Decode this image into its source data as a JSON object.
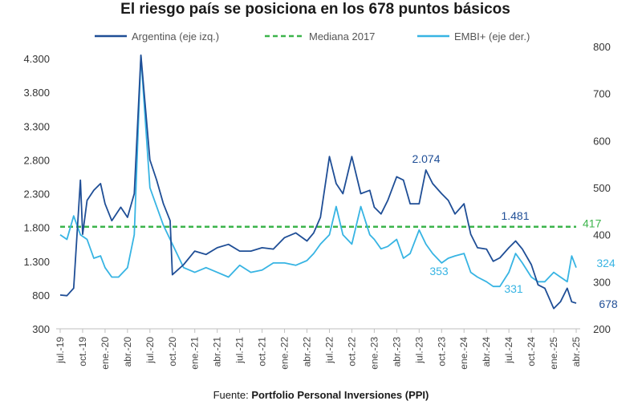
{
  "chart_data": {
    "type": "line",
    "title": "El riesgo país se posiciona en los 678 puntos básicos",
    "source_prefix": "Fuente: ",
    "source_name": "Portfolio Personal Inversiones (PPI)",
    "x_ticks": [
      "jul.-19",
      "oct.-19",
      "ene.-20",
      "abr.-20",
      "jul.-20",
      "oct.-20",
      "ene.-21",
      "abr.-21",
      "jul.-21",
      "oct.-21",
      "ene.-22",
      "abr.-22",
      "jul.-22",
      "oct.-22",
      "ene.-23",
      "abr.-23",
      "jul.-23",
      "oct.-23",
      "ene.-24",
      "abr.-24",
      "jul.-24",
      "oct.-24",
      "ene.-25",
      "abr.-25"
    ],
    "y_left": {
      "ticks": [
        "4.300",
        "3.800",
        "3.300",
        "2.800",
        "2.300",
        "1.800",
        "1.300",
        "800",
        "300"
      ],
      "tick_values": [
        4300,
        3800,
        3300,
        2800,
        2300,
        1800,
        1300,
        800,
        300
      ],
      "range": [
        300,
        4300
      ]
    },
    "y_right": {
      "ticks": [
        "800",
        "700",
        "600",
        "500",
        "400",
        "300",
        "200"
      ],
      "tick_values": [
        800,
        700,
        600,
        500,
        400,
        300,
        200
      ],
      "range": [
        200,
        800
      ]
    },
    "colors": {
      "argentina": "#1f4e96",
      "mediana": "#3cb44b",
      "embi": "#37b4e3"
    },
    "legend": [
      "Argentina (eje izq.)",
      "Mediana 2017",
      "EMBI+ (eje der.)"
    ],
    "series": [
      {
        "name": "Argentina (eje izq.)",
        "axis": "left",
        "x": [
          0,
          0.3,
          0.6,
          0.9,
          1.0,
          1.2,
          1.5,
          1.8,
          2.0,
          2.3,
          2.7,
          3.0,
          3.3,
          3.6,
          4.0,
          4.3,
          4.6,
          4.9,
          5.0,
          5.5,
          6.0,
          6.5,
          7.0,
          7.5,
          8.0,
          8.5,
          9.0,
          9.5,
          10.0,
          10.5,
          11.0,
          11.3,
          11.6,
          12.0,
          12.3,
          12.6,
          13.0,
          13.4,
          13.8,
          14.0,
          14.3,
          14.6,
          15.0,
          15.3,
          15.6,
          16.0,
          16.3,
          16.6,
          17.0,
          17.3,
          17.6,
          18.0,
          18.3,
          18.6,
          19.0,
          19.3,
          19.6,
          20.0,
          20.3,
          20.6,
          21.0,
          21.3,
          21.6,
          22.0,
          22.3,
          22.6,
          22.8,
          23.0
        ],
        "values": [
          800,
          790,
          900,
          2500,
          1700,
          2200,
          2350,
          2450,
          2150,
          1900,
          2100,
          1950,
          2300,
          4350,
          2800,
          2500,
          2150,
          1900,
          1100,
          1250,
          1450,
          1400,
          1500,
          1550,
          1450,
          1450,
          1500,
          1480,
          1650,
          1720,
          1600,
          1720,
          1950,
          2850,
          2450,
          2300,
          2850,
          2300,
          2350,
          2100,
          2000,
          2200,
          2550,
          2500,
          2150,
          2150,
          2650,
          2450,
          2300,
          2200,
          2000,
          2150,
          1700,
          1500,
          1480,
          1300,
          1350,
          1500,
          1600,
          1480,
          1250,
          950,
          900,
          600,
          700,
          900,
          700,
          680
        ]
      },
      {
        "name": "EMBI+ (eje der.)",
        "axis": "right",
        "x": [
          0,
          0.3,
          0.6,
          0.9,
          1.2,
          1.5,
          1.8,
          2.0,
          2.3,
          2.6,
          3.0,
          3.3,
          3.6,
          4.0,
          4.3,
          4.6,
          5.0,
          5.5,
          6.0,
          6.5,
          7.0,
          7.5,
          8.0,
          8.5,
          9.0,
          9.5,
          10.0,
          10.5,
          11.0,
          11.3,
          11.6,
          12.0,
          12.3,
          12.6,
          13.0,
          13.4,
          13.8,
          14.0,
          14.3,
          14.6,
          15.0,
          15.3,
          15.6,
          16.0,
          16.3,
          16.6,
          17.0,
          17.3,
          17.6,
          18.0,
          18.3,
          18.6,
          19.0,
          19.3,
          19.6,
          20.0,
          20.3,
          20.6,
          21.0,
          21.3,
          21.6,
          22.0,
          22.3,
          22.6,
          22.8,
          23.0
        ],
        "values": [
          400,
          390,
          440,
          400,
          390,
          350,
          355,
          330,
          310,
          310,
          330,
          400,
          780,
          500,
          460,
          420,
          380,
          330,
          320,
          330,
          320,
          310,
          335,
          320,
          325,
          340,
          340,
          335,
          345,
          360,
          380,
          400,
          460,
          400,
          380,
          460,
          400,
          390,
          370,
          375,
          390,
          350,
          360,
          410,
          380,
          360,
          340,
          350,
          355,
          360,
          320,
          310,
          300,
          290,
          290,
          320,
          360,
          340,
          310,
          300,
          300,
          320,
          310,
          300,
          355,
          330
        ]
      }
    ],
    "median": {
      "name": "Mediana 2017",
      "value": 417,
      "label": "417",
      "axis": "right_label"
    },
    "annotations": [
      {
        "text": "2.074",
        "series": "argentina"
      },
      {
        "text": "1.481",
        "series": "argentina"
      },
      {
        "text": "678",
        "series": "argentina"
      },
      {
        "text": "353",
        "series": "embi"
      },
      {
        "text": "331",
        "series": "embi"
      },
      {
        "text": "324",
        "series": "embi"
      }
    ]
  }
}
